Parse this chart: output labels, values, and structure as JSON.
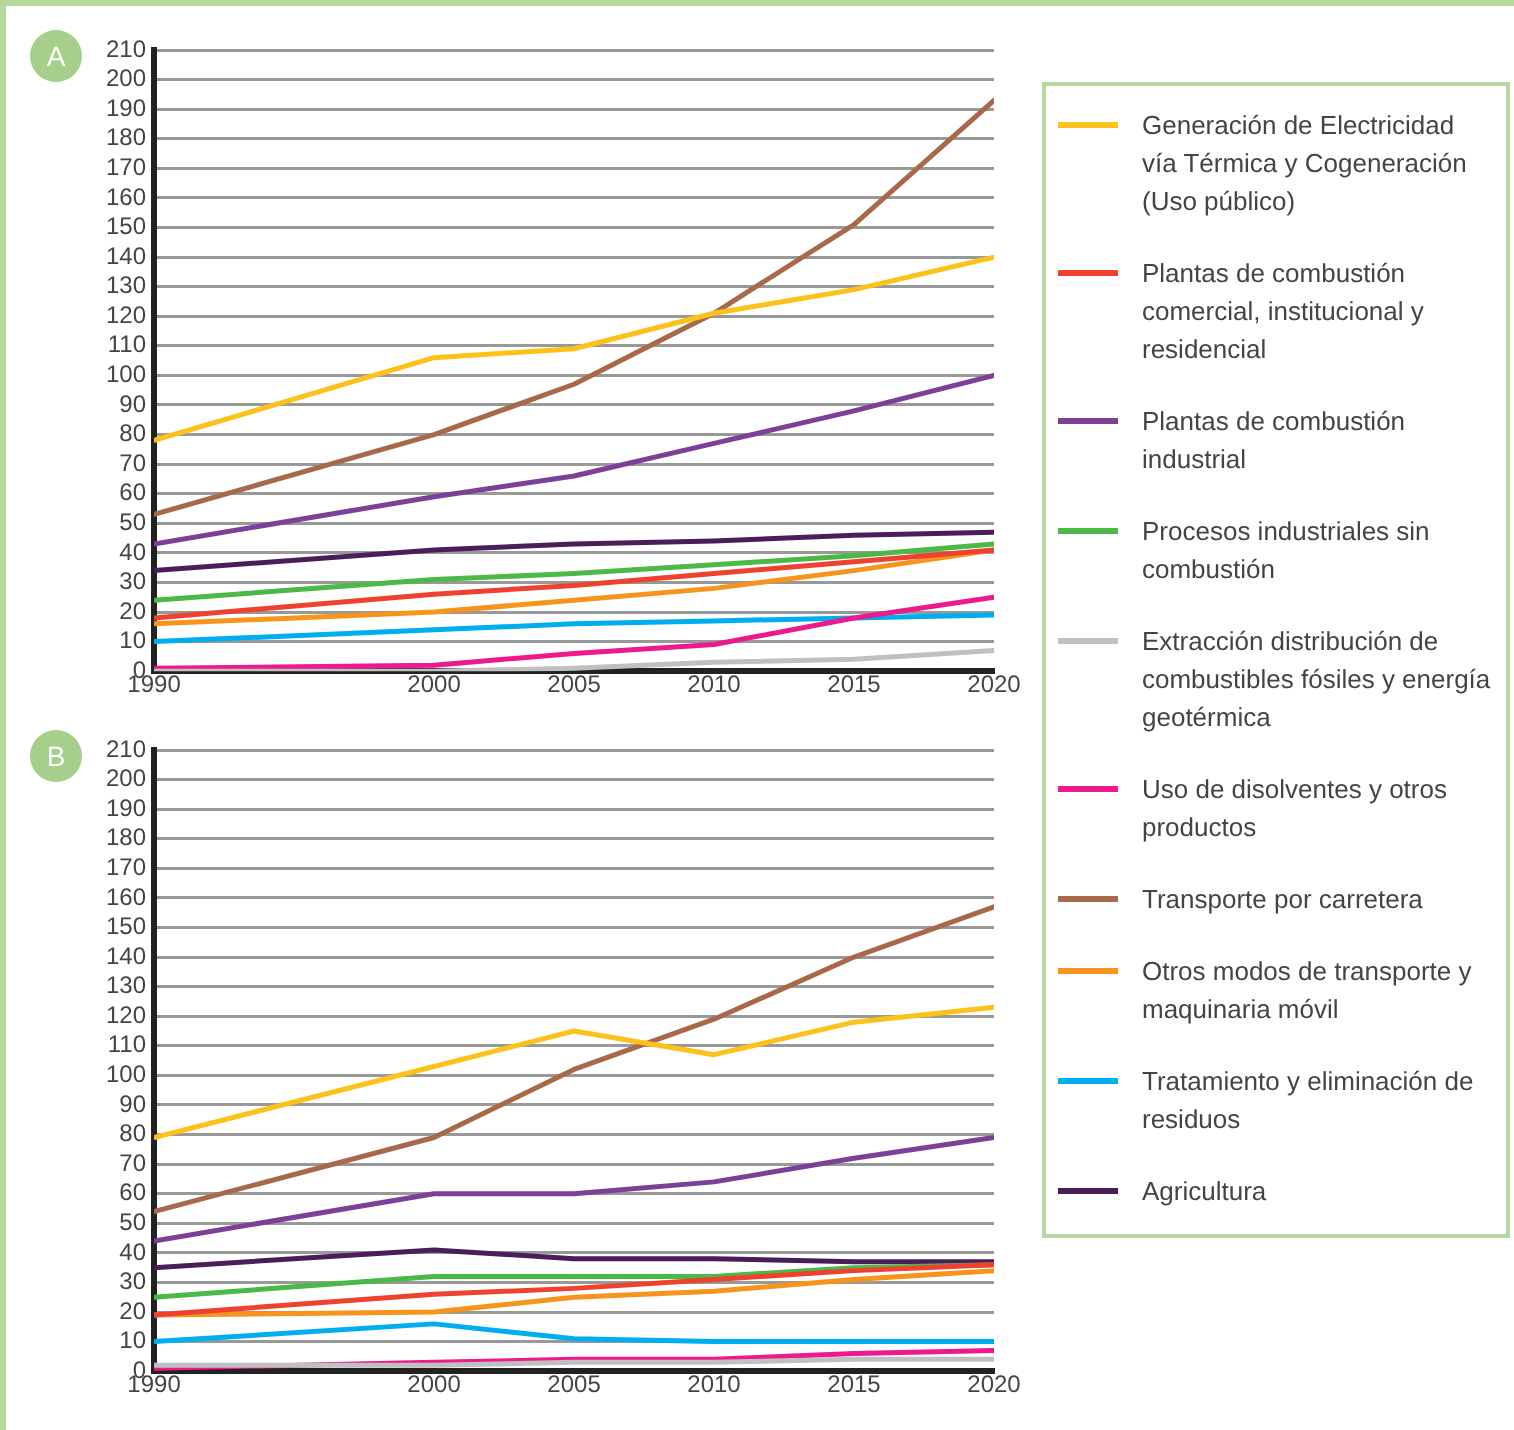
{
  "chart_data": [
    {
      "type": "line",
      "title": "A",
      "x": [
        1990,
        2000,
        2005,
        2010,
        2015,
        2020
      ],
      "xlim": [
        1990,
        2020
      ],
      "xticks": [
        1990,
        2000,
        2005,
        2010,
        2015,
        2020
      ],
      "ylim": [
        0,
        210
      ],
      "yticks": [
        0,
        10,
        20,
        30,
        40,
        50,
        60,
        70,
        80,
        90,
        100,
        110,
        120,
        130,
        140,
        150,
        160,
        170,
        180,
        190,
        200,
        210
      ],
      "grid": "y",
      "legend": "right",
      "marker": "none",
      "line_style": "solid",
      "series": [
        {
          "name": "Generación de Electricidad vía Térmica y Cogeneración (Uso público)",
          "color": "#fcc21b",
          "values": [
            78,
            106,
            109,
            121,
            129,
            140
          ]
        },
        {
          "name": "Plantas de combustión comercial, institucional y residencial",
          "color": "#ef4130",
          "values": [
            18,
            26,
            29,
            33,
            37,
            41
          ]
        },
        {
          "name": "Plantas de combustión industrial",
          "color": "#7d3f98",
          "values": [
            43,
            59,
            66,
            77,
            88,
            100
          ]
        },
        {
          "name": "Procesos industriales sin combustión",
          "color": "#4cb848",
          "values": [
            24,
            31,
            33,
            36,
            39,
            43
          ]
        },
        {
          "name": "Extracción distribución de combustibles fósiles y energía geotérmica",
          "color": "#c0c0c0",
          "values": [
            0,
            0,
            1,
            3,
            4,
            7
          ]
        },
        {
          "name": "Uso de disolventes y otros productos",
          "color": "#ec1a8c",
          "values": [
            1,
            2,
            6,
            9,
            18,
            25
          ]
        },
        {
          "name": "Transporte por carretera",
          "color": "#a8694a",
          "values": [
            53,
            80,
            97,
            121,
            151,
            193
          ]
        },
        {
          "name": "Otros modos de transporte y maquinaria móvil",
          "color": "#f7941d",
          "values": [
            16,
            20,
            24,
            28,
            34,
            41
          ]
        },
        {
          "name": "Tratamiento y eliminación de residuos",
          "color": "#00aeef",
          "values": [
            10,
            14,
            16,
            17,
            18,
            19
          ]
        },
        {
          "name": "Agricultura",
          "color": "#4b1d5a",
          "values": [
            34,
            41,
            43,
            44,
            46,
            47
          ]
        }
      ]
    },
    {
      "type": "line",
      "title": "B",
      "x": [
        1990,
        2000,
        2005,
        2010,
        2015,
        2020
      ],
      "xlim": [
        1990,
        2020
      ],
      "xticks": [
        1990,
        2000,
        2005,
        2010,
        2015,
        2020
      ],
      "ylim": [
        0,
        210
      ],
      "yticks": [
        0,
        10,
        20,
        30,
        40,
        50,
        60,
        70,
        80,
        90,
        100,
        110,
        120,
        130,
        140,
        150,
        160,
        170,
        180,
        190,
        200,
        210
      ],
      "grid": "y",
      "marker": "none",
      "line_style": "solid",
      "series": [
        {
          "color": "#fcc21b",
          "values": [
            79,
            103,
            115,
            107,
            118,
            123
          ]
        },
        {
          "color": "#ef4130",
          "values": [
            19,
            26,
            28,
            31,
            34,
            36
          ]
        },
        {
          "color": "#7d3f98",
          "values": [
            44,
            60,
            60,
            64,
            72,
            79
          ]
        },
        {
          "color": "#4cb848",
          "values": [
            25,
            32,
            32,
            32,
            35,
            36
          ]
        },
        {
          "color": "#c0c0c0",
          "values": [
            2,
            2,
            3,
            3,
            4,
            4
          ]
        },
        {
          "color": "#ec1a8c",
          "values": [
            1,
            3,
            4,
            4,
            6,
            7
          ]
        },
        {
          "color": "#a8694a",
          "values": [
            54,
            79,
            102,
            119,
            140,
            157
          ]
        },
        {
          "color": "#f7941d",
          "values": [
            19,
            20,
            25,
            27,
            31,
            34
          ]
        },
        {
          "color": "#00aeef",
          "values": [
            10,
            16,
            11,
            10,
            10,
            10
          ]
        },
        {
          "color": "#4b1d5a",
          "values": [
            35,
            41,
            38,
            38,
            37,
            37
          ]
        }
      ]
    }
  ]
}
